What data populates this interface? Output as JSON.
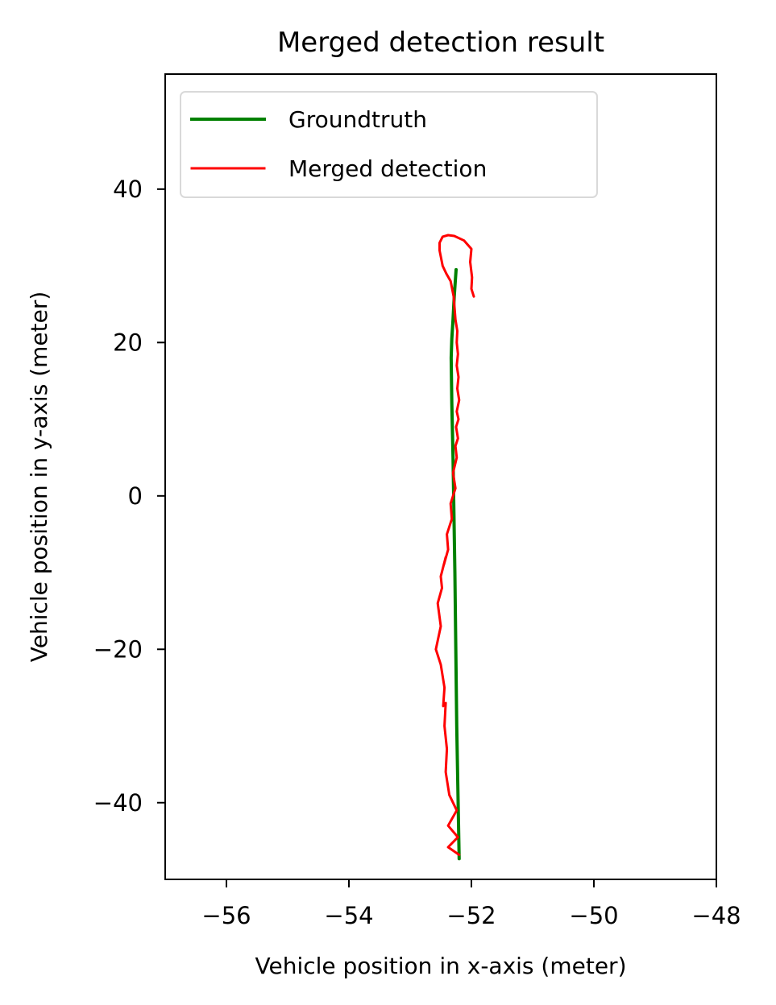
{
  "chart_data": {
    "type": "line",
    "title": "Merged detection result",
    "xlabel": "Vehicle position in x-axis (meter)",
    "ylabel": "Vehicle position in y-axis (meter)",
    "xlim": [
      -57,
      -48
    ],
    "ylim": [
      -50,
      55
    ],
    "xticks": [
      -56,
      -54,
      -52,
      -50,
      -48
    ],
    "yticks": [
      -40,
      -20,
      0,
      20,
      40
    ],
    "xtick_labels": [
      "−56",
      "−54",
      "−52",
      "−50",
      "−48"
    ],
    "ytick_labels": [
      "−40",
      "−20",
      "0",
      "20",
      "40"
    ],
    "grid": false,
    "legend_position": "upper-left",
    "colors": {
      "groundtruth": "#008000",
      "merged_detection": "#ff0000",
      "axes": "#000000",
      "legend_border": "#d9d9d9"
    },
    "series": [
      {
        "name": "Groundtruth",
        "color": "#008000",
        "x": [
          -52.2,
          -52.24,
          -52.27,
          -52.3,
          -52.32,
          -52.33,
          -52.32,
          -52.3,
          -52.28,
          -52.25
        ],
        "y": [
          -47.3,
          -30.0,
          -10.0,
          5.0,
          12.0,
          18.0,
          20.5,
          23.0,
          26.0,
          29.5
        ]
      },
      {
        "name": "Merged detection",
        "color": "#ff0000",
        "x": [
          -52.2,
          -52.38,
          -52.22,
          -52.38,
          -52.24,
          -52.36,
          -52.42,
          -52.4,
          -52.44,
          -52.42,
          -52.46,
          -52.44,
          -52.5,
          -52.58,
          -52.5,
          -52.55,
          -52.48,
          -52.5,
          -52.42,
          -52.45,
          -52.38,
          -52.4,
          -52.32,
          -52.34,
          -52.26,
          -52.3,
          -52.24,
          -52.26,
          -52.22,
          -52.25,
          -52.21,
          -52.24,
          -52.2,
          -52.23,
          -52.21,
          -52.24,
          -52.22,
          -52.24,
          -52.23,
          -52.26,
          -52.29,
          -52.34,
          -52.41,
          -52.47,
          -52.52,
          -52.52,
          -52.47,
          -52.38,
          -52.28,
          -52.12,
          -52.0,
          -52.02,
          -51.99,
          -52.0,
          -51.96
        ],
        "y": [
          -46.8,
          -45.8,
          -44.5,
          -43.0,
          -41.0,
          -39.0,
          -36.0,
          -33.0,
          -30.0,
          -27.0,
          -27.4,
          -25.0,
          -22.0,
          -20.0,
          -17.0,
          -14.0,
          -12.0,
          -10.5,
          -8.0,
          -9.0,
          -7.0,
          -5.0,
          -3.0,
          -1.0,
          1.0,
          3.0,
          5.0,
          6.5,
          7.5,
          9.0,
          10.0,
          11.0,
          12.5,
          14.0,
          15.5,
          17.0,
          18.5,
          20.0,
          21.5,
          23.0,
          26.0,
          28.0,
          29.0,
          30.0,
          32.0,
          33.0,
          33.8,
          34.0,
          33.9,
          33.3,
          32.2,
          30.5,
          28.5,
          27.0,
          26.0
        ]
      }
    ]
  }
}
